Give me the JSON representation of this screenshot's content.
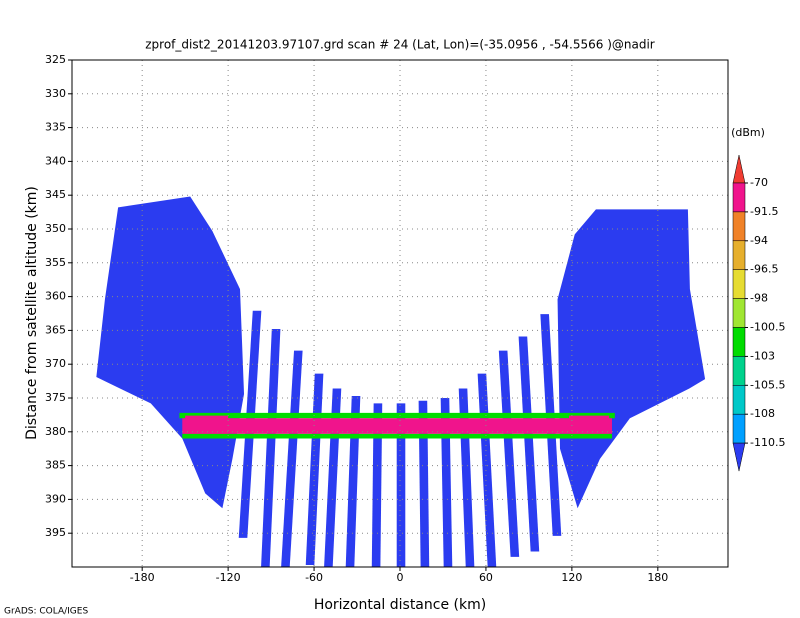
{
  "chart_data": {
    "type": "swath",
    "title": "zprof_dist2_20141203.97107.grd  scan # 24  (Lat, Lon)=(-35.0956 , -54.5566 )@nadir",
    "xlabel": "Horizontal distance (km)",
    "ylabel": "Distance from satellite altitude (km)",
    "credit": "GrADS: COLA/IGES",
    "xlim": [
      -229,
      229
    ],
    "ylim": [
      400,
      325
    ],
    "xticks": [
      -180,
      -120,
      -60,
      0,
      60,
      120,
      180
    ],
    "yticks": [
      325,
      330,
      335,
      340,
      345,
      350,
      355,
      360,
      365,
      370,
      375,
      380,
      385,
      390,
      395
    ],
    "grid": true,
    "colorbar": {
      "title": "(dBm)",
      "levels": [
        -70,
        -91.5,
        -94,
        -96.5,
        -98,
        -100.5,
        -103,
        -105.5,
        -108,
        -110.5
      ],
      "colors": [
        "#f03c32",
        "#f0148c",
        "#f08228",
        "#e6af2d",
        "#e6dc32",
        "#a0e632",
        "#00dc00",
        "#00d28c",
        "#00c8c8",
        "#00a0ff",
        "#2b3cf0"
      ]
    },
    "regions": [
      {
        "xs": [
          -196.8,
          -146.5,
          -131,
          -111.7,
          -108.9,
          -117,
          -124,
          -136,
          -152,
          -174,
          -212,
          -206
        ],
        "ys": [
          346.8,
          345.2,
          350.3,
          358.9,
          374.4,
          384,
          391.3,
          389.1,
          381,
          375.8,
          371.9,
          360.4
        ],
        "value": -112
      },
      {
        "xs": [
          136.8,
          201,
          202.4,
          213,
          202,
          160.5,
          139.6,
          124,
          111.7,
          110,
          122
        ],
        "ys": [
          347.1,
          347.1,
          358.9,
          372.2,
          373.6,
          378,
          384,
          391.3,
          382.5,
          360.4,
          350.8
        ],
        "value": -112
      }
    ],
    "swaths": [
      {
        "x_top": 0.7,
        "y_top": 375.8,
        "x_bottom": 0.7,
        "y_bottom": 400,
        "value": -112
      },
      {
        "x_top": -15.4,
        "y_top": 375.8,
        "x_bottom": -16.7,
        "y_bottom": 400,
        "value": -112
      },
      {
        "x_top": -30.7,
        "y_top": 374.7,
        "x_bottom": -34.9,
        "y_bottom": 400,
        "value": -112
      },
      {
        "x_top": -44,
        "y_top": 373.6,
        "x_bottom": -50,
        "y_bottom": 400,
        "value": -112
      },
      {
        "x_top": -56.5,
        "y_top": 371.4,
        "x_bottom": -62.8,
        "y_bottom": 399.7,
        "value": -112
      },
      {
        "x_top": -71,
        "y_top": 368,
        "x_bottom": -80,
        "y_bottom": 400,
        "value": -112
      },
      {
        "x_top": -86.5,
        "y_top": 364.8,
        "x_bottom": -94,
        "y_bottom": 400,
        "value": -112
      },
      {
        "x_top": -99.8,
        "y_top": 362.1,
        "x_bottom": -109.6,
        "y_bottom": 395.7,
        "value": -112
      },
      {
        "x_top": 16,
        "y_top": 375.4,
        "x_bottom": 17.4,
        "y_bottom": 400,
        "value": -112
      },
      {
        "x_top": 31.4,
        "y_top": 375,
        "x_bottom": 33.5,
        "y_bottom": 400,
        "value": -112
      },
      {
        "x_top": 44,
        "y_top": 373.6,
        "x_bottom": 48.9,
        "y_bottom": 400,
        "value": -112
      },
      {
        "x_top": 57.2,
        "y_top": 371.4,
        "x_bottom": 64.2,
        "y_bottom": 400,
        "value": -112
      },
      {
        "x_top": 72,
        "y_top": 368,
        "x_bottom": 80.2,
        "y_bottom": 398.5,
        "value": -112
      },
      {
        "x_top": 85.8,
        "y_top": 365.9,
        "x_bottom": 94.2,
        "y_bottom": 397.7,
        "value": -112
      },
      {
        "x_top": 101,
        "y_top": 362.6,
        "x_bottom": 109.6,
        "y_bottom": 395.4,
        "value": -112
      }
    ],
    "bands": [
      {
        "xs": [
          -154,
          150,
          150,
          -154
        ],
        "ys": [
          377.2,
          377.2,
          378,
          378
        ],
        "value": -101.5
      },
      {
        "xs": [
          -152,
          148,
          148,
          -152
        ],
        "ys": [
          378,
          378,
          380.3,
          380.3
        ],
        "value": -85
      },
      {
        "xs": [
          -150,
          -120,
          -120,
          -150
        ],
        "ys": [
          377.6,
          377.6,
          380.8,
          380.8
        ],
        "value": -85
      },
      {
        "xs": [
          118,
          146,
          146,
          118
        ],
        "ys": [
          377.6,
          377.6,
          380.6,
          380.6
        ],
        "value": -85
      },
      {
        "xs": [
          -152,
          148,
          148,
          -152
        ],
        "ys": [
          380.3,
          380.3,
          381,
          381
        ],
        "value": -101.5
      }
    ]
  }
}
